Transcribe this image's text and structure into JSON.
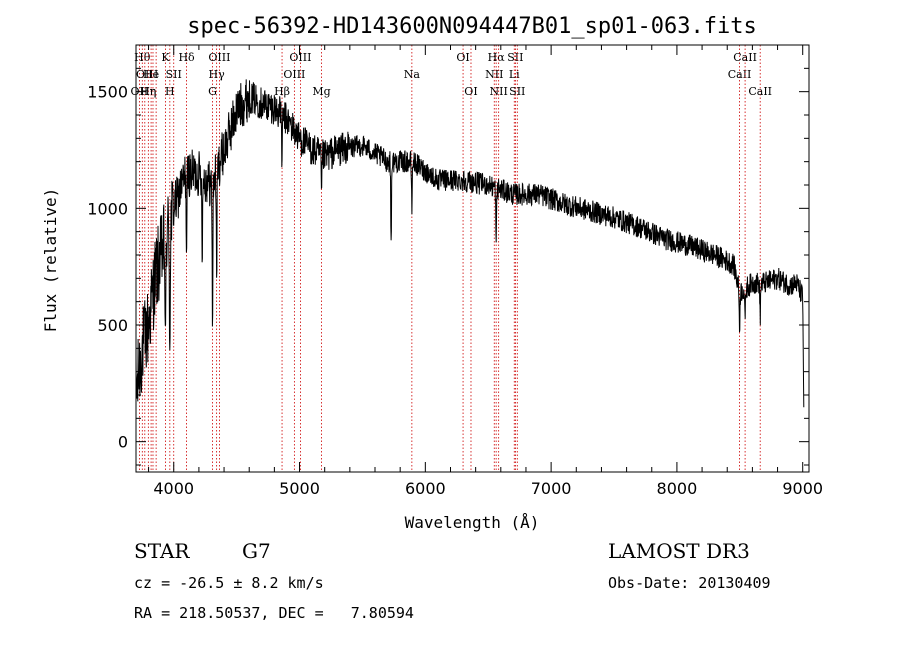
{
  "chart_data": {
    "type": "line",
    "title": "spec-56392-HD143600N094447B01_sp01-063.fits",
    "xlabel": "Wavelength (Å)",
    "ylabel": "Flux (relative)",
    "xlim": [
      3700,
      9050
    ],
    "ylim": [
      -130,
      1700
    ],
    "xticks": [
      4000,
      5000,
      6000,
      7000,
      8000,
      9000
    ],
    "yticks": [
      0,
      500,
      1000,
      1500
    ],
    "series": [
      {
        "name": "spectrum",
        "anchors_x": [
          3700,
          3750,
          3800,
          3850,
          3900,
          3950,
          4000,
          4100,
          4200,
          4300,
          4400,
          4500,
          4600,
          4700,
          4800,
          4900,
          5000,
          5100,
          5200,
          5300,
          5500,
          5700,
          5900,
          6100,
          6300,
          6500,
          6700,
          6900,
          7100,
          7300,
          7500,
          7700,
          7900,
          8100,
          8300,
          8450,
          8500,
          8600,
          8700,
          8800,
          8900,
          8950,
          9000,
          9010
        ],
        "anchors_y": [
          200,
          400,
          500,
          700,
          800,
          900,
          1000,
          1150,
          1150,
          1100,
          1250,
          1420,
          1480,
          1450,
          1430,
          1380,
          1300,
          1250,
          1220,
          1250,
          1270,
          1200,
          1200,
          1120,
          1120,
          1100,
          1060,
          1060,
          1020,
          990,
          960,
          920,
          870,
          840,
          800,
          760,
          640,
          680,
          680,
          700,
          670,
          680,
          620,
          100
        ],
        "noise": 60,
        "absorption": [
          {
            "wavelength": 3934,
            "depth": 550
          },
          {
            "wavelength": 3969,
            "depth": 550
          },
          {
            "wavelength": 4102,
            "depth": 350
          },
          {
            "wavelength": 4227,
            "depth": 300
          },
          {
            "wavelength": 4308,
            "depth": 600
          },
          {
            "wavelength": 4341,
            "depth": 450
          },
          {
            "wavelength": 4861,
            "depth": 200
          },
          {
            "wavelength": 5175,
            "depth": 180
          },
          {
            "wavelength": 5728,
            "depth": 350
          },
          {
            "wavelength": 5893,
            "depth": 200
          },
          {
            "wavelength": 6563,
            "depth": 250
          },
          {
            "wavelength": 8498,
            "depth": 150
          },
          {
            "wavelength": 8542,
            "depth": 150
          },
          {
            "wavelength": 8662,
            "depth": 150
          }
        ]
      }
    ],
    "line_markers": [
      {
        "wavelength": 3727,
        "label": "OII",
        "row": 2
      },
      {
        "wavelength": 3750,
        "label": "Hθ",
        "row": 0
      },
      {
        "wavelength": 3770,
        "label": "OII",
        "row": 1
      },
      {
        "wavelength": 3798,
        "label": "Hη",
        "row": 2
      },
      {
        "wavelength": 3820,
        "label": "He",
        "row": 1
      },
      {
        "wavelength": 3835,
        "label": "η",
        "row": 2
      },
      {
        "wavelength": 3860,
        "label": "I",
        "row": 1
      },
      {
        "wavelength": 3934,
        "label": "K",
        "row": 0
      },
      {
        "wavelength": 3969,
        "label": "H",
        "row": 2
      },
      {
        "wavelength": 4000,
        "label": "SII",
        "row": 1
      },
      {
        "wavelength": 4102,
        "label": "Hδ",
        "row": 0
      },
      {
        "wavelength": 4308,
        "label": "G",
        "row": 2
      },
      {
        "wavelength": 4341,
        "label": "Hγ",
        "row": 1
      },
      {
        "wavelength": 4363,
        "label": "OIII",
        "row": 0
      },
      {
        "wavelength": 4861,
        "label": "Hβ",
        "row": 2
      },
      {
        "wavelength": 4959,
        "label": "OIII",
        "row": 1
      },
      {
        "wavelength": 5007,
        "label": "OIII",
        "row": 0
      },
      {
        "wavelength": 5175,
        "label": "Mg",
        "row": 2
      },
      {
        "wavelength": 5893,
        "label": "Na",
        "row": 1
      },
      {
        "wavelength": 6300,
        "label": "OI",
        "row": 0
      },
      {
        "wavelength": 6363,
        "label": "OI",
        "row": 2
      },
      {
        "wavelength": 6548,
        "label": "NII",
        "row": 1
      },
      {
        "wavelength": 6563,
        "label": "Hα",
        "row": 0
      },
      {
        "wavelength": 6583,
        "label": "NII",
        "row": 2
      },
      {
        "wavelength": 6707,
        "label": "Li",
        "row": 1
      },
      {
        "wavelength": 6716,
        "label": "SII",
        "row": 0
      },
      {
        "wavelength": 6731,
        "label": "SII",
        "row": 2
      },
      {
        "wavelength": 8498,
        "label": "CaII",
        "row": 1
      },
      {
        "wavelength": 8542,
        "label": "CaII",
        "row": 0
      },
      {
        "wavelength": 8662,
        "label": "CaII",
        "row": 2
      }
    ]
  },
  "info": {
    "object_class": "STAR",
    "subclass": "G7",
    "survey": "LAMOST DR3",
    "cz": "cz = -26.5 ± 8.2 km/s",
    "obs_date": "Obs-Date: 20130409",
    "coords": "RA = 218.50537, DEC =   7.80594"
  },
  "colors": {
    "axis": "#000000",
    "spectrum": "#000000",
    "marker": "#cc0000",
    "background": "#ffffff"
  }
}
